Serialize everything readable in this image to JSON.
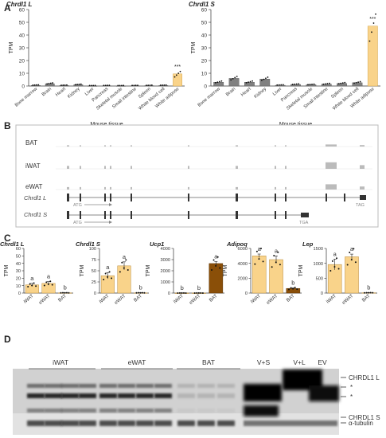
{
  "panels": {
    "A": "A",
    "B": "B",
    "C": "C",
    "D": "D"
  },
  "panelA": {
    "xlabel": "Mouse tissue",
    "ylabel": "TPM",
    "categories": [
      "Bone marrow",
      "Brain",
      "Heart",
      "Kidney",
      "Liver",
      "Pancreas",
      "Skeletal muscle",
      "Small intestine",
      "Spleen",
      "White blood cell",
      "White adipose"
    ]
  },
  "panelB": {
    "tracks": [
      "BAT",
      "iWAT",
      "eWAT"
    ],
    "genes": [
      "Chrdl1 L",
      "Chrdl1 S"
    ],
    "start_codon": "ATG",
    "stop_codon": "TGA",
    "stop_codon_long": "TAG"
  },
  "panelC": {
    "ylabel": "TPM",
    "categories": [
      "iWAT",
      "eWAT",
      "BAT"
    ]
  },
  "panelD": {
    "group_labels": [
      "iWAT",
      "eWAT",
      "BAT",
      "V+S",
      "V+L",
      "EV"
    ],
    "band_labels": [
      "CHRDL1 L",
      "*",
      "*",
      "CHRDL1 S"
    ],
    "loading_label": "α-tubulin"
  },
  "colors": {
    "bar_light": "#f9d38a",
    "bar_dark": "#8a4f08",
    "bar_gray": "#808080",
    "gene_bar": "#333333"
  },
  "chart_data": [
    {
      "type": "bar",
      "panel": "A",
      "title": "Chrdl1 L",
      "ylabel": "TPM",
      "xlabel": "Mouse tissue",
      "ylim": [
        0,
        60
      ],
      "yticks": [
        0,
        10,
        20,
        30,
        40,
        50,
        60
      ],
      "categories": [
        "Bone marrow",
        "Brain",
        "Heart",
        "Kidney",
        "Liver",
        "Pancreas",
        "Skeletal muscle",
        "Small intestine",
        "Spleen",
        "White blood cell",
        "White adipose"
      ],
      "values": [
        0.5,
        1.8,
        0.4,
        1.0,
        0.1,
        0.2,
        0.1,
        0.2,
        0.3,
        0.4,
        9.5
      ],
      "annotations": [
        "",
        "",
        "",
        "",
        "",
        "",
        "",
        "",
        "",
        "",
        "***"
      ]
    },
    {
      "type": "bar",
      "panel": "A",
      "title": "Chrdl1 S",
      "ylabel": "TPM",
      "xlabel": "Mouse tissue",
      "ylim": [
        0,
        60
      ],
      "yticks": [
        0,
        10,
        20,
        30,
        40,
        50,
        60
      ],
      "categories": [
        "Bone marrow",
        "Brain",
        "Heart",
        "Kidney",
        "Liver",
        "Pancreas",
        "Skeletal muscle",
        "Small intestine",
        "Spleen",
        "White blood cell",
        "White adipose"
      ],
      "values": [
        3.0,
        6.0,
        3.0,
        5.5,
        0.6,
        1.2,
        1.0,
        1.5,
        2.0,
        2.6,
        47
      ],
      "annotations": [
        "",
        "",
        "",
        "",
        "",
        "",
        "",
        "",
        "",
        "",
        "***"
      ]
    },
    {
      "type": "bar",
      "panel": "C",
      "title": "Chrdl1 L",
      "ylabel": "TPM",
      "ylim": [
        0,
        60
      ],
      "yticks": [
        0,
        10,
        20,
        30,
        40,
        50,
        60
      ],
      "categories": [
        "iWAT",
        "eWAT",
        "BAT"
      ],
      "values": [
        11,
        13,
        0.3
      ],
      "errors": [
        2,
        2.5,
        0.1
      ],
      "letters": [
        "a",
        "a",
        "b"
      ]
    },
    {
      "type": "bar",
      "panel": "C",
      "title": "Chrdl1 S",
      "ylabel": "TPM",
      "ylim": [
        0,
        100
      ],
      "yticks": [
        0,
        25,
        50,
        75,
        100
      ],
      "categories": [
        "iWAT",
        "eWAT",
        "BAT"
      ],
      "values": [
        39,
        61,
        0.5
      ],
      "errors": [
        7,
        9,
        0.2
      ],
      "letters": [
        "a",
        "a",
        "b"
      ]
    },
    {
      "type": "bar",
      "panel": "C",
      "title": "Ucp1",
      "ylabel": "TPM",
      "ylim": [
        0,
        4000
      ],
      "yticks": [
        0,
        1000,
        2000,
        3000,
        4000
      ],
      "categories": [
        "iWAT",
        "eWAT",
        "BAT"
      ],
      "values": [
        5,
        5,
        2650
      ],
      "errors": [
        1,
        1,
        180
      ],
      "letters": [
        "b",
        "b",
        "a"
      ]
    },
    {
      "type": "bar",
      "panel": "C",
      "title": "Adipoq",
      "ylabel": "TPM",
      "ylim": [
        0,
        6000
      ],
      "yticks": [
        0,
        2000,
        4000,
        6000
      ],
      "categories": [
        "iWAT",
        "eWAT",
        "BAT"
      ],
      "values": [
        5000,
        4500,
        620
      ],
      "errors": [
        250,
        500,
        80
      ],
      "letters": [
        "a",
        "a",
        "b"
      ]
    },
    {
      "type": "bar",
      "panel": "C",
      "title": "Lep",
      "ylabel": "TPM",
      "ylim": [
        0,
        1500
      ],
      "yticks": [
        0,
        500,
        1000,
        1500
      ],
      "categories": [
        "iWAT",
        "eWAT",
        "BAT"
      ],
      "values": [
        960,
        1220,
        10
      ],
      "errors": [
        180,
        90,
        3
      ],
      "letters": [
        "a",
        "a",
        "b"
      ]
    }
  ]
}
